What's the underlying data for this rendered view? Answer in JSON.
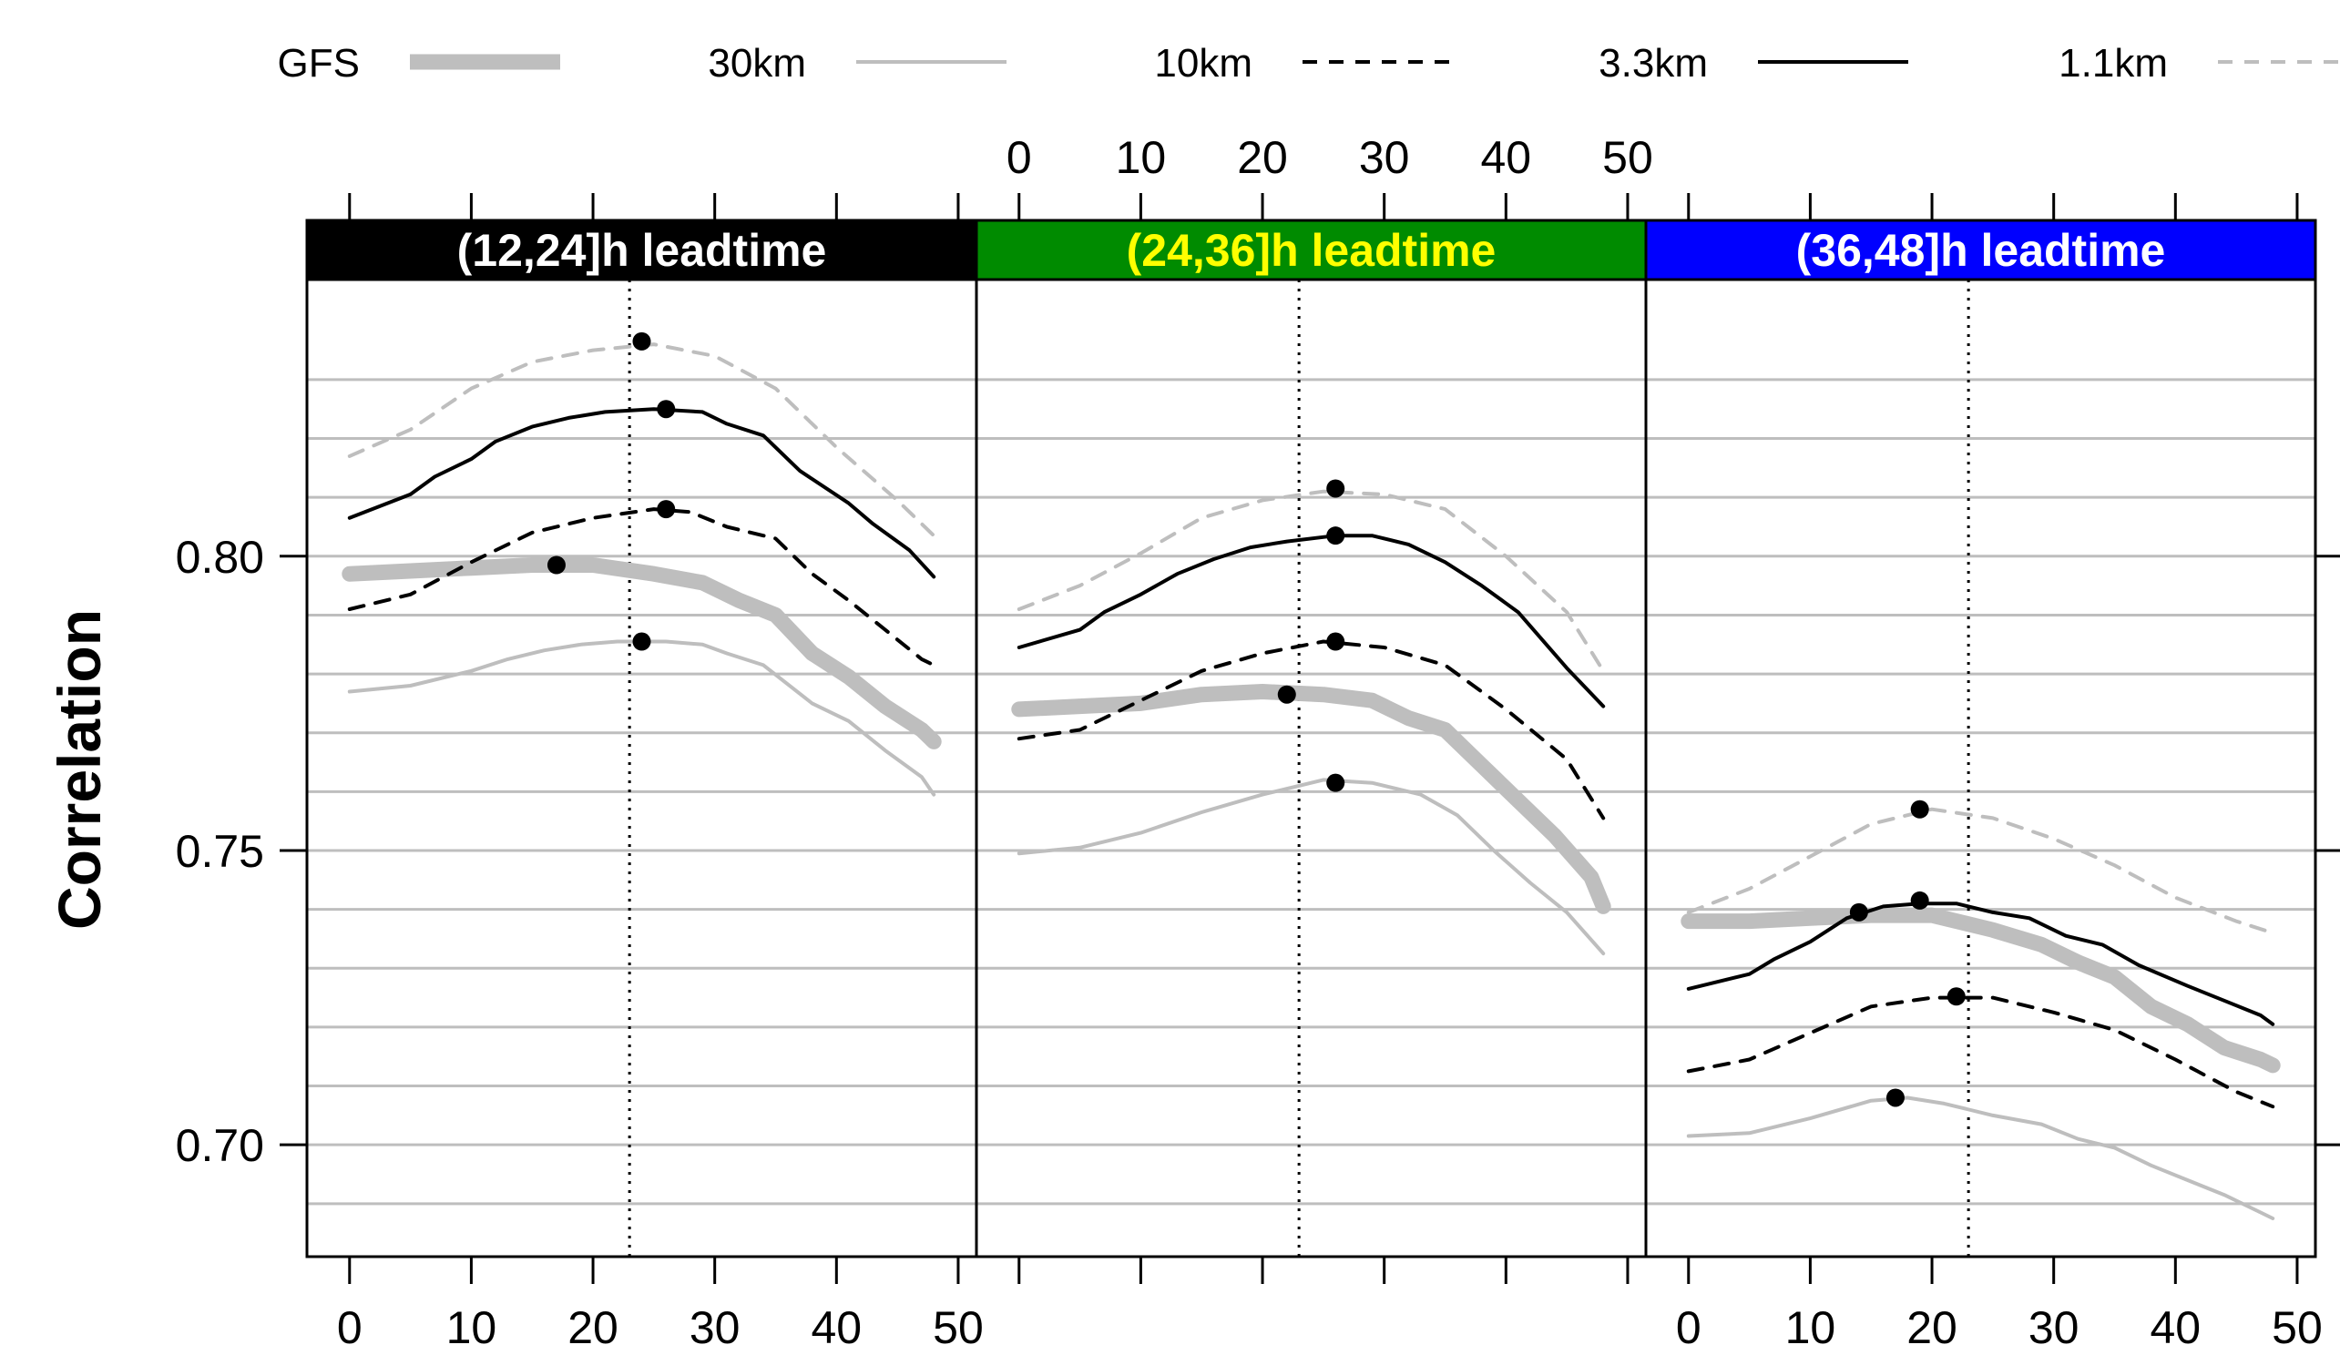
{
  "chart_data": {
    "type": "line",
    "ylabel": "Correlation",
    "xlim": [
      -3.5,
      51.5
    ],
    "ylim": [
      0.681,
      0.847
    ],
    "x_ticks": [
      0,
      10,
      20,
      30,
      40,
      50
    ],
    "y_ticks": [
      0.7,
      0.75,
      0.8
    ],
    "y_tick_labels": [
      "0.70",
      "0.75",
      "0.80"
    ],
    "grid_y": [
      0.69,
      0.7,
      0.71,
      0.72,
      0.73,
      0.74,
      0.75,
      0.76,
      0.77,
      0.78,
      0.79,
      0.8,
      0.81,
      0.82,
      0.83
    ],
    "legend": [
      {
        "name": "GFS",
        "color": "#bebebe",
        "style": "solid-thick"
      },
      {
        "name": "30km",
        "color": "#bebebe",
        "style": "solid"
      },
      {
        "name": "10km",
        "color": "#000000",
        "style": "dashed"
      },
      {
        "name": "3.3km",
        "color": "#000000",
        "style": "solid"
      },
      {
        "name": "1.1km",
        "color": "#bebebe",
        "style": "dashed"
      }
    ],
    "panels": [
      {
        "title": "(12,24]h leadtime",
        "strip_color": "#000000",
        "title_color": "#ffffff",
        "vline_x": 23,
        "series": [
          {
            "name": "GFS",
            "x": [
              0,
              5,
              10,
              15,
              20,
              25,
              29,
              32,
              35,
              38,
              41,
              44,
              47,
              48
            ],
            "y": [
              0.797,
              0.7975,
              0.798,
              0.7985,
              0.7985,
              0.797,
              0.7955,
              0.7925,
              0.79,
              0.7835,
              0.7795,
              0.7745,
              0.7705,
              0.7685
            ],
            "best_x": 17,
            "best_y": 0.7985
          },
          {
            "name": "30km",
            "x": [
              0,
              5,
              10,
              13,
              16,
              19,
              22,
              26,
              29,
              31,
              34,
              38,
              41,
              44,
              47,
              48
            ],
            "y": [
              0.777,
              0.778,
              0.7805,
              0.7825,
              0.784,
              0.785,
              0.7855,
              0.7855,
              0.785,
              0.7835,
              0.7815,
              0.775,
              0.772,
              0.767,
              0.7625,
              0.7595
            ],
            "best_x": 24,
            "best_y": 0.7855
          },
          {
            "name": "10km",
            "x": [
              0,
              5,
              10,
              15,
              20,
              25,
              28,
              31,
              35,
              38,
              41,
              44,
              47,
              48
            ],
            "y": [
              0.791,
              0.7935,
              0.799,
              0.804,
              0.8065,
              0.808,
              0.8075,
              0.805,
              0.803,
              0.797,
              0.7925,
              0.7875,
              0.7825,
              0.7815
            ],
            "best_x": 26,
            "best_y": 0.808
          },
          {
            "name": "3.3km",
            "x": [
              0,
              5,
              7,
              10,
              12,
              15,
              18,
              21,
              25,
              29,
              31,
              34,
              37,
              41,
              43,
              46,
              48
            ],
            "y": [
              0.8065,
              0.8105,
              0.8135,
              0.8165,
              0.8195,
              0.822,
              0.8235,
              0.8245,
              0.825,
              0.8245,
              0.8225,
              0.8205,
              0.8145,
              0.809,
              0.8055,
              0.801,
              0.7965
            ],
            "best_x": 26,
            "best_y": 0.825
          },
          {
            "name": "1.1km",
            "x": [
              0,
              5,
              10,
              15,
              20,
              25,
              30,
              35,
              40,
              45,
              48
            ],
            "y": [
              0.817,
              0.8215,
              0.8285,
              0.833,
              0.835,
              0.836,
              0.834,
              0.8285,
              0.8185,
              0.8095,
              0.8035
            ],
            "best_x": 24,
            "best_y": 0.8365
          }
        ]
      },
      {
        "title": "(24,36]h leadtime",
        "strip_color": "#008b00",
        "title_color": "#ffff00",
        "vline_x": 23,
        "series": [
          {
            "name": "GFS",
            "x": [
              0,
              5,
              10,
              15,
              20,
              25,
              29,
              32,
              35,
              38,
              41,
              44,
              47,
              48
            ],
            "y": [
              0.774,
              0.7745,
              0.775,
              0.7765,
              0.777,
              0.7765,
              0.7755,
              0.7725,
              0.7705,
              0.7645,
              0.7585,
              0.7525,
              0.7455,
              0.7405
            ],
            "best_x": 22,
            "best_y": 0.7765
          },
          {
            "name": "30km",
            "x": [
              0,
              5,
              10,
              15,
              20,
              25,
              29,
              33,
              36,
              39,
              42,
              45,
              48
            ],
            "y": [
              0.7495,
              0.7505,
              0.753,
              0.7565,
              0.7595,
              0.762,
              0.7615,
              0.7595,
              0.756,
              0.75,
              0.7445,
              0.7395,
              0.7325
            ],
            "best_x": 26,
            "best_y": 0.7615
          },
          {
            "name": "10km",
            "x": [
              0,
              5,
              10,
              15,
              20,
              25,
              30,
              35,
              40,
              45,
              48
            ],
            "y": [
              0.769,
              0.7705,
              0.7755,
              0.7805,
              0.7835,
              0.7855,
              0.7845,
              0.7815,
              0.774,
              0.7655,
              0.7555
            ],
            "best_x": 26,
            "best_y": 0.7855
          },
          {
            "name": "3.3km",
            "x": [
              0,
              5,
              7,
              10,
              13,
              16,
              19,
              22,
              26,
              29,
              32,
              35,
              38,
              41,
              45,
              48
            ],
            "y": [
              0.7845,
              0.7875,
              0.7905,
              0.7935,
              0.797,
              0.7995,
              0.8015,
              0.8025,
              0.8035,
              0.8035,
              0.802,
              0.799,
              0.795,
              0.7905,
              0.781,
              0.7745
            ],
            "best_x": 26,
            "best_y": 0.8035
          },
          {
            "name": "1.1km",
            "x": [
              0,
              5,
              10,
              15,
              20,
              25,
              30,
              35,
              40,
              45,
              48
            ],
            "y": [
              0.791,
              0.795,
              0.8005,
              0.8065,
              0.8095,
              0.811,
              0.8105,
              0.808,
              0.8,
              0.7905,
              0.7805
            ],
            "best_x": 26,
            "best_y": 0.8115
          }
        ]
      },
      {
        "title": "(36,48]h leadtime",
        "strip_color": "#0000ff",
        "title_color": "#ffffff",
        "vline_x": 23,
        "series": [
          {
            "name": "GFS",
            "x": [
              0,
              5,
              10,
              15,
              20,
              25,
              29,
              32,
              35,
              38,
              41,
              44,
              47,
              48
            ],
            "y": [
              0.738,
              0.738,
              0.7385,
              0.739,
              0.739,
              0.7365,
              0.734,
              0.731,
              0.7285,
              0.7235,
              0.7205,
              0.7165,
              0.7145,
              0.7135
            ],
            "best_x": 14,
            "best_y": 0.7395
          },
          {
            "name": "30km",
            "x": [
              0,
              5,
              10,
              15,
              18,
              21,
              25,
              29,
              32,
              35,
              38,
              41,
              44,
              47,
              48
            ],
            "y": [
              0.7015,
              0.702,
              0.7045,
              0.7075,
              0.708,
              0.707,
              0.705,
              0.7035,
              0.701,
              0.6995,
              0.6965,
              0.694,
              0.6915,
              0.6885,
              0.6875
            ],
            "best_x": 17,
            "best_y": 0.708
          },
          {
            "name": "10km",
            "x": [
              0,
              5,
              10,
              15,
              20,
              25,
              30,
              35,
              40,
              45,
              48
            ],
            "y": [
              0.7125,
              0.7145,
              0.719,
              0.7235,
              0.725,
              0.725,
              0.7225,
              0.7195,
              0.7145,
              0.709,
              0.7065
            ],
            "best_x": 22,
            "best_y": 0.7252
          },
          {
            "name": "3.3km",
            "x": [
              0,
              5,
              7,
              10,
              13,
              16,
              19,
              22,
              25,
              28,
              31,
              34,
              37,
              41,
              44,
              47,
              48
            ],
            "y": [
              0.7265,
              0.729,
              0.7315,
              0.7345,
              0.7385,
              0.7405,
              0.741,
              0.741,
              0.7395,
              0.7385,
              0.7355,
              0.734,
              0.7305,
              0.727,
              0.7245,
              0.722,
              0.7205
            ],
            "best_x": 19,
            "best_y": 0.7415
          },
          {
            "name": "1.1km",
            "x": [
              0,
              5,
              10,
              15,
              20,
              25,
              30,
              35,
              40,
              45,
              48
            ],
            "y": [
              0.7395,
              0.7435,
              0.749,
              0.7545,
              0.757,
              0.7555,
              0.752,
              0.7475,
              0.742,
              0.738,
              0.736
            ],
            "best_x": 19,
            "best_y": 0.757
          }
        ]
      }
    ]
  }
}
